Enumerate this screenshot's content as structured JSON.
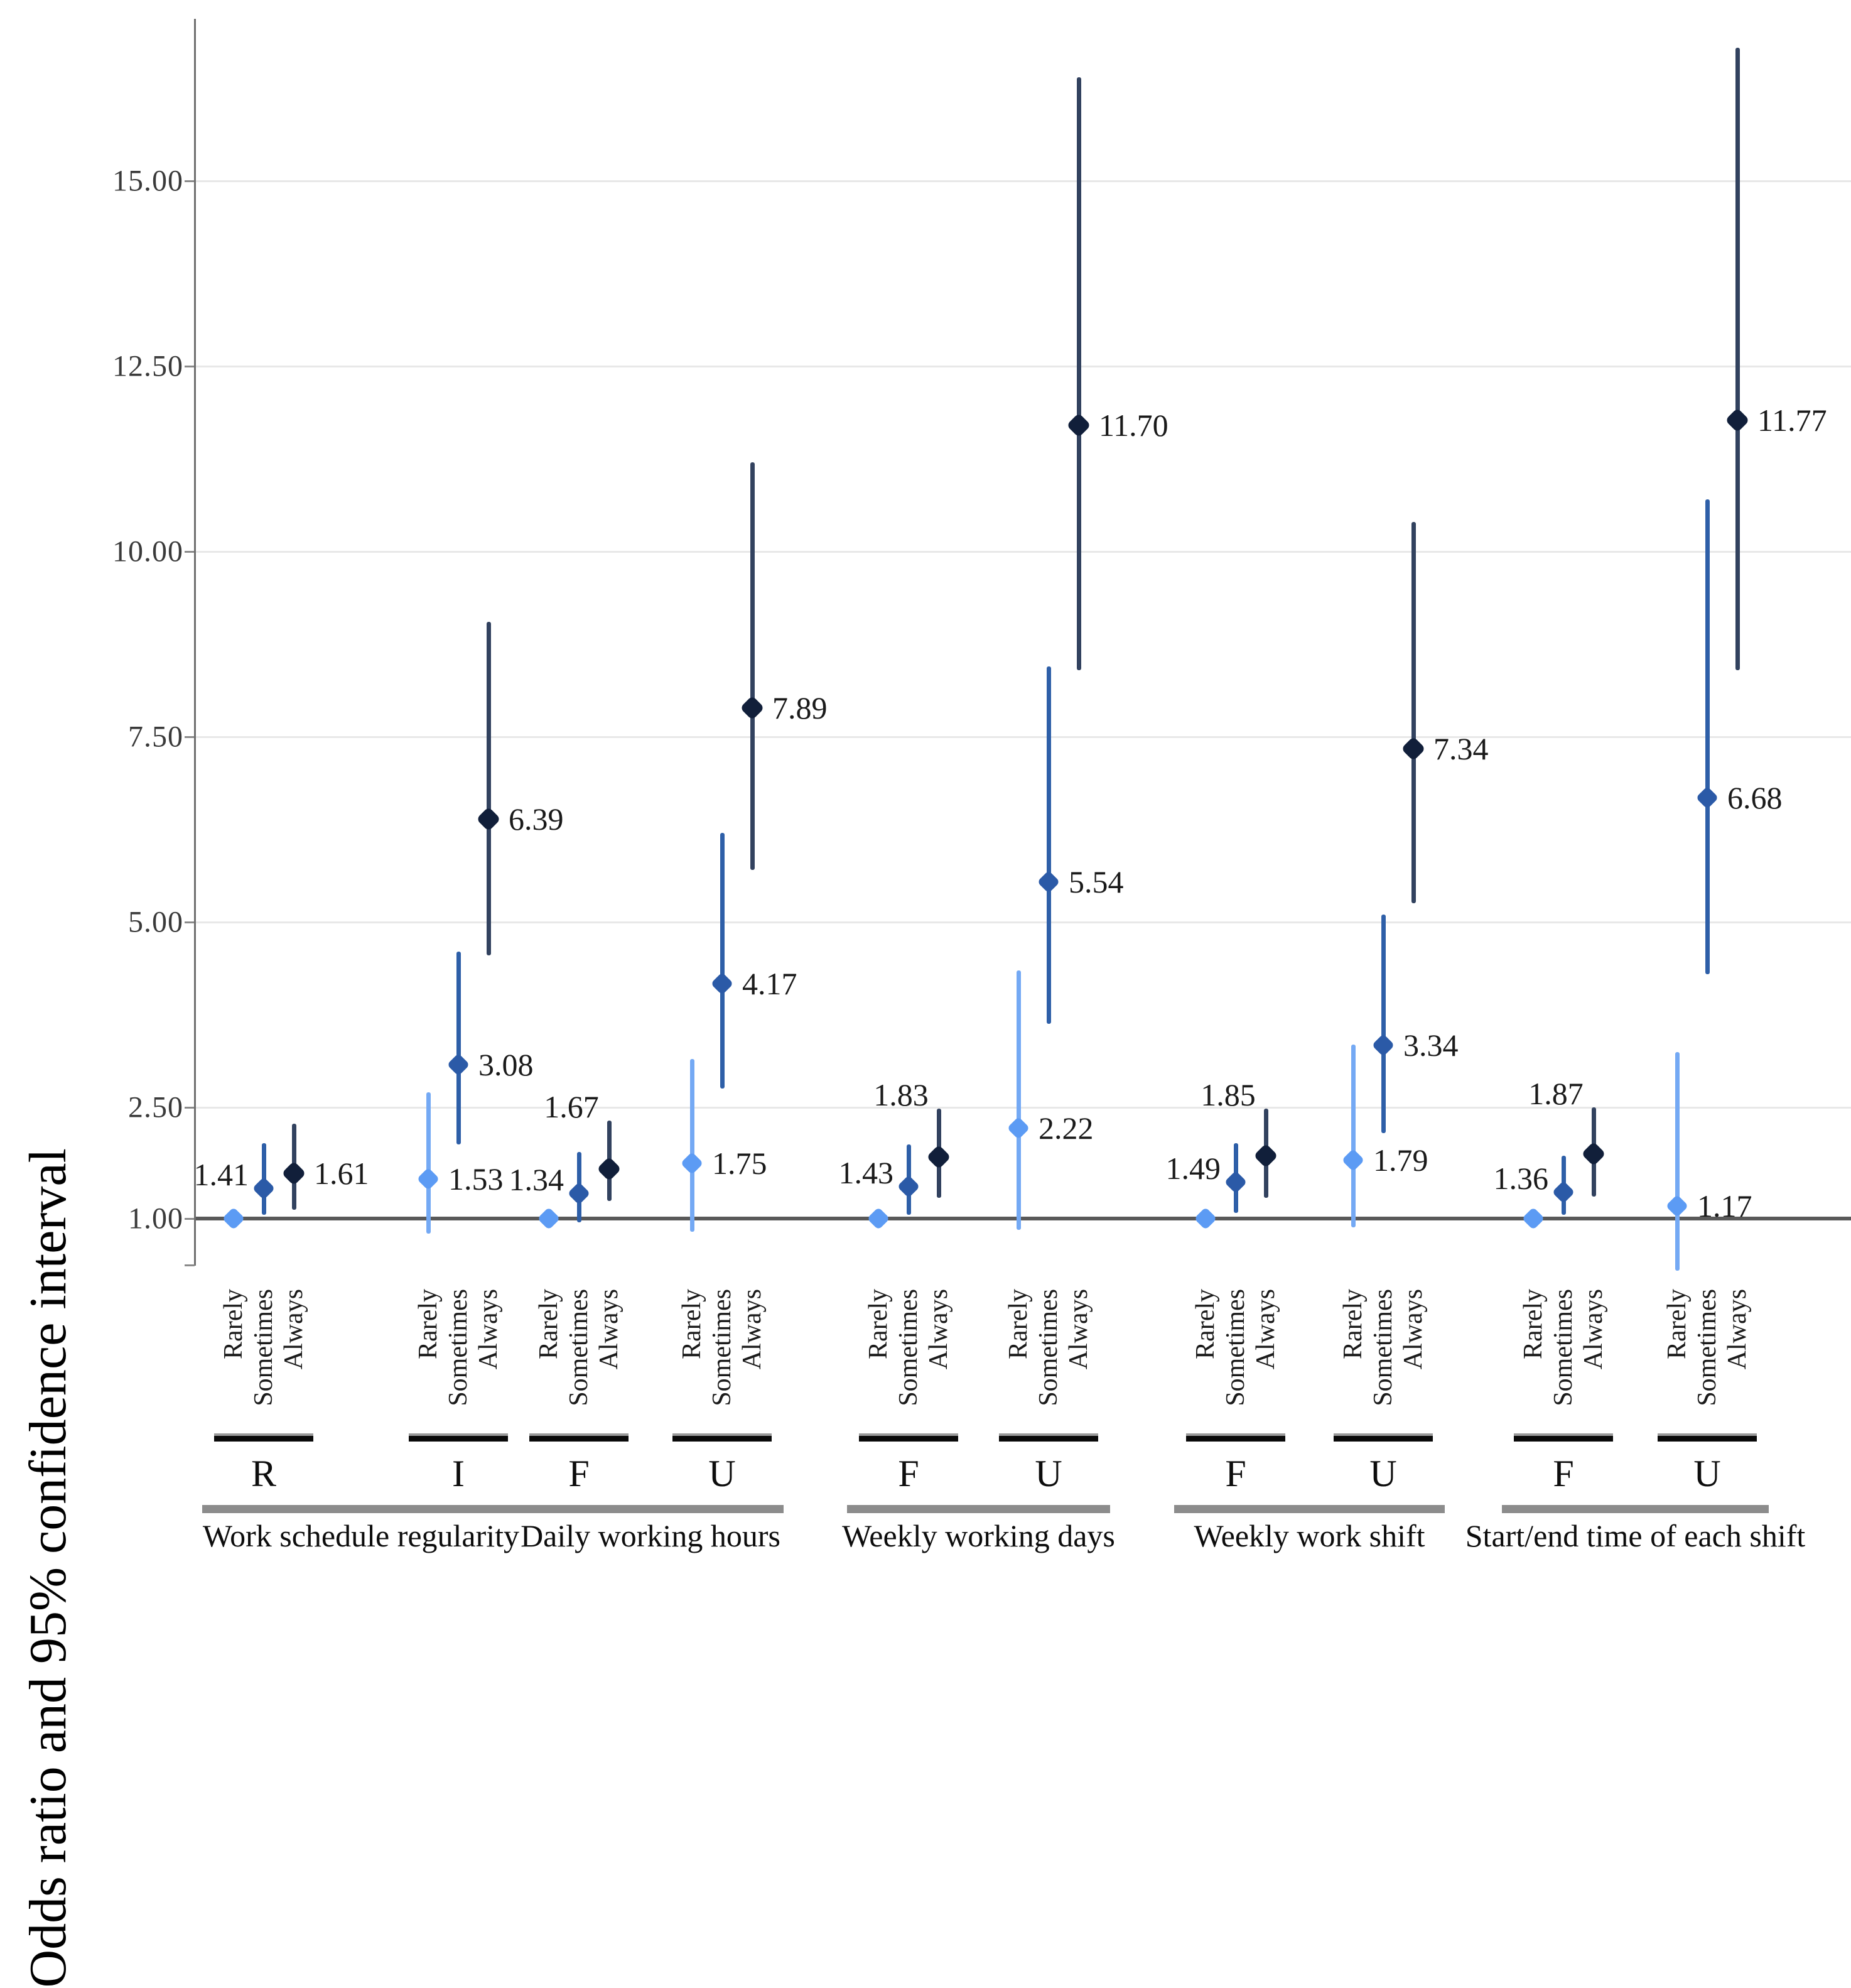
{
  "chart_data": {
    "type": "scatter",
    "variant": "forest-dot-and-whisker",
    "title": "",
    "ylabel": "Odds ratio and 95% confidence interval",
    "xlabel": "",
    "ytick_labels": [
      "15.00",
      "12.50",
      "10.00",
      "7.50",
      "5.00",
      "2.50",
      "1.00"
    ],
    "ytick_values": [
      15.0,
      12.5,
      10.0,
      7.5,
      5.0,
      2.5,
      1.0
    ],
    "ylim": [
      0.25,
      17.2
    ],
    "grid": "horizontal",
    "legend_position": "none",
    "reference_line_value": 1.0,
    "series_categories": [
      "Rarely",
      "Sometimes",
      "Always"
    ],
    "groups": [
      {
        "label": "Work schedule regularity",
        "clusters": [
          {
            "letter": "R",
            "points": [
              {
                "category": "Rarely",
                "or": 1.0,
                "reference": true
              },
              {
                "category": "Sometimes",
                "or": 1.41,
                "ci_low": 1.05,
                "ci_high": 2.02,
                "label": "1.41",
                "label_side": "left"
              },
              {
                "category": "Always",
                "or": 1.61,
                "ci_low": 1.12,
                "ci_high": 2.28,
                "label": "1.61",
                "label_side": "right"
              }
            ]
          },
          {
            "letter": "I",
            "points": [
              {
                "category": "Rarely",
                "or": 1.53,
                "ci_low": 0.8,
                "ci_high": 2.7,
                "label": "1.53",
                "label_side": "right"
              },
              {
                "category": "Sometimes",
                "or": 3.08,
                "ci_low": 2.0,
                "ci_high": 4.6,
                "label": "3.08",
                "label_side": "right"
              },
              {
                "category": "Always",
                "or": 6.39,
                "ci_low": 4.55,
                "ci_high": 9.05,
                "label": "6.39",
                "label_side": "right"
              }
            ]
          }
        ]
      },
      {
        "label": "Daily working hours",
        "clusters": [
          {
            "letter": "F",
            "points": [
              {
                "category": "Rarely",
                "or": 1.0,
                "reference": true
              },
              {
                "category": "Sometimes",
                "or": 1.34,
                "ci_low": 0.95,
                "ci_high": 1.9,
                "label": "1.34",
                "label_side": "left"
              },
              {
                "category": "Always",
                "or": 1.67,
                "ci_low": 1.24,
                "ci_high": 2.32,
                "label": "1.67",
                "label_side": "above"
              }
            ]
          },
          {
            "letter": "U",
            "points": [
              {
                "category": "Rarely",
                "or": 1.75,
                "ci_low": 0.82,
                "ci_high": 3.15,
                "label": "1.75",
                "label_side": "right"
              },
              {
                "category": "Sometimes",
                "or": 4.17,
                "ci_low": 2.75,
                "ci_high": 6.2,
                "label": "4.17",
                "label_side": "right"
              },
              {
                "category": "Always",
                "or": 7.89,
                "ci_low": 5.7,
                "ci_high": 11.2,
                "label": "7.89",
                "label_side": "right"
              }
            ]
          }
        ]
      },
      {
        "label": "Weekly working days",
        "clusters": [
          {
            "letter": "F",
            "points": [
              {
                "category": "Rarely",
                "or": 1.0,
                "reference": true
              },
              {
                "category": "Sometimes",
                "or": 1.43,
                "ci_low": 1.05,
                "ci_high": 2.0,
                "label": "1.43",
                "label_side": "left"
              },
              {
                "category": "Always",
                "or": 1.83,
                "ci_low": 1.28,
                "ci_high": 2.48,
                "label": "1.83",
                "label_side": "above"
              }
            ]
          },
          {
            "letter": "U",
            "points": [
              {
                "category": "Rarely",
                "or": 2.22,
                "ci_low": 0.85,
                "ci_high": 4.35,
                "label": "2.22",
                "label_side": "right"
              },
              {
                "category": "Sometimes",
                "or": 5.54,
                "ci_low": 3.63,
                "ci_high": 8.45,
                "label": "5.54",
                "label_side": "right"
              },
              {
                "category": "Always",
                "or": 11.7,
                "ci_low": 8.4,
                "ci_high": 16.4,
                "label": "11.70",
                "label_side": "right"
              }
            ]
          }
        ]
      },
      {
        "label": "Weekly work shift",
        "clusters": [
          {
            "letter": "F",
            "points": [
              {
                "category": "Rarely",
                "or": 1.0,
                "reference": true
              },
              {
                "category": "Sometimes",
                "or": 1.49,
                "ci_low": 1.08,
                "ci_high": 2.02,
                "label": "1.49",
                "label_side": "left"
              },
              {
                "category": "Always",
                "or": 1.85,
                "ci_low": 1.28,
                "ci_high": 2.48,
                "label": "1.85",
                "label_side": "above"
              }
            ]
          },
          {
            "letter": "U",
            "points": [
              {
                "category": "Rarely",
                "or": 1.79,
                "ci_low": 0.88,
                "ci_high": 3.35,
                "label": "1.79",
                "label_side": "right"
              },
              {
                "category": "Sometimes",
                "or": 3.34,
                "ci_low": 2.15,
                "ci_high": 5.1,
                "label": "3.34",
                "label_side": "right"
              },
              {
                "category": "Always",
                "or": 7.34,
                "ci_low": 5.25,
                "ci_high": 10.4,
                "label": "7.34",
                "label_side": "right"
              }
            ]
          }
        ]
      },
      {
        "label": "Start/end time of each shift",
        "clusters": [
          {
            "letter": "F",
            "points": [
              {
                "category": "Rarely",
                "or": 1.0,
                "reference": true
              },
              {
                "category": "Sometimes",
                "or": 1.36,
                "ci_low": 1.05,
                "ci_high": 1.85,
                "label": "1.36",
                "label_side": "left"
              },
              {
                "category": "Always",
                "or": 1.87,
                "ci_low": 1.3,
                "ci_high": 2.5,
                "label": "1.87",
                "label_side": "above"
              }
            ]
          },
          {
            "letter": "U",
            "points": [
              {
                "category": "Rarely",
                "or": 1.17,
                "ci_low": 0.3,
                "ci_high": 3.25,
                "label": "1.17",
                "label_side": "right"
              },
              {
                "category": "Sometimes",
                "or": 6.68,
                "ci_low": 4.3,
                "ci_high": 10.7,
                "label": "6.68",
                "label_side": "right"
              },
              {
                "category": "Always",
                "or": 11.77,
                "ci_low": 8.4,
                "ci_high": 16.8,
                "label": "11.77",
                "label_side": "right"
              }
            ]
          }
        ]
      }
    ]
  },
  "colors": {
    "rarely_marker": "#5C9BF4",
    "rarely_whisker": "#74A9F4",
    "sometimes_marker": "#2B5AA7",
    "sometimes_whisker": "#2E5FA8",
    "always_marker": "#111F3A",
    "always_whisker": "#32425F",
    "reference_line": "#595959",
    "gridline": "#E8E8E8",
    "axis": "#6E6E6E",
    "value_label_text": "#1A1A1A",
    "cluster_bar": "#0A0A0A",
    "cluster_bar_top": "#9A9A9A",
    "group_bar": "#8C8C8C"
  }
}
